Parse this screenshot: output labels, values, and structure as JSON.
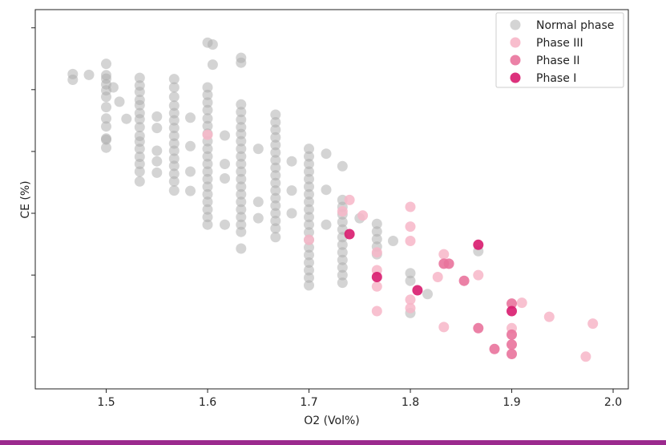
{
  "colors": {
    "normal": "#a9a9a9",
    "phase3": "#f7b6c8",
    "phase2": "#e9739c",
    "phase1": "#d81b6e",
    "bottom_rule": "#9b2a8e"
  },
  "chart_data": {
    "type": "scatter",
    "title": "",
    "xlabel": "O2 (Vol%)",
    "ylabel": "CE (%)",
    "xlim": [
      1.43,
      2.015
    ],
    "ylim": [
      0.0,
      1.0
    ],
    "x_ticks": [
      1.5,
      1.6,
      1.7,
      1.8,
      1.9,
      2.0
    ],
    "x_tick_labels": [
      "1.5",
      "1.6",
      "1.7",
      "1.8",
      "1.9",
      "2.0"
    ],
    "y_ticks": [
      0.137,
      0.3,
      0.463,
      0.626,
      0.789,
      0.952
    ],
    "y_tick_labels_shown": false,
    "grid": false,
    "legend_position": "top-right",
    "series": [
      {
        "name": "Normal phase",
        "color": "#a9a9a9",
        "points": [
          [
            1.467,
            0.83
          ],
          [
            1.467,
            0.815
          ],
          [
            1.483,
            0.828
          ],
          [
            1.5,
            0.857
          ],
          [
            1.5,
            0.827
          ],
          [
            1.5,
            0.818
          ],
          [
            1.5,
            0.803
          ],
          [
            1.5,
            0.787
          ],
          [
            1.5,
            0.77
          ],
          [
            1.5,
            0.743
          ],
          [
            1.5,
            0.713
          ],
          [
            1.5,
            0.692
          ],
          [
            1.5,
            0.66
          ],
          [
            1.5,
            0.657
          ],
          [
            1.5,
            0.636
          ],
          [
            1.507,
            0.795
          ],
          [
            1.513,
            0.757
          ],
          [
            1.52,
            0.712
          ],
          [
            1.533,
            0.82
          ],
          [
            1.533,
            0.8
          ],
          [
            1.533,
            0.783
          ],
          [
            1.533,
            0.762
          ],
          [
            1.533,
            0.748
          ],
          [
            1.533,
            0.727
          ],
          [
            1.533,
            0.711
          ],
          [
            1.533,
            0.69
          ],
          [
            1.533,
            0.667
          ],
          [
            1.533,
            0.652
          ],
          [
            1.533,
            0.633
          ],
          [
            1.533,
            0.612
          ],
          [
            1.533,
            0.593
          ],
          [
            1.533,
            0.573
          ],
          [
            1.533,
            0.547
          ],
          [
            1.55,
            0.718
          ],
          [
            1.55,
            0.688
          ],
          [
            1.55,
            0.628
          ],
          [
            1.55,
            0.6
          ],
          [
            1.55,
            0.57
          ],
          [
            1.567,
            0.817
          ],
          [
            1.567,
            0.795
          ],
          [
            1.567,
            0.77
          ],
          [
            1.567,
            0.747
          ],
          [
            1.567,
            0.727
          ],
          [
            1.567,
            0.708
          ],
          [
            1.567,
            0.688
          ],
          [
            1.567,
            0.667
          ],
          [
            1.567,
            0.647
          ],
          [
            1.567,
            0.628
          ],
          [
            1.567,
            0.607
          ],
          [
            1.567,
            0.588
          ],
          [
            1.567,
            0.567
          ],
          [
            1.567,
            0.547
          ],
          [
            1.567,
            0.523
          ],
          [
            1.583,
            0.715
          ],
          [
            1.583,
            0.573
          ],
          [
            1.583,
            0.522
          ],
          [
            1.6,
            0.913
          ],
          [
            1.6,
            0.795
          ],
          [
            1.6,
            0.775
          ],
          [
            1.6,
            0.755
          ],
          [
            1.6,
            0.735
          ],
          [
            1.6,
            0.713
          ],
          [
            1.6,
            0.693
          ],
          [
            1.6,
            0.673
          ],
          [
            1.6,
            0.653
          ],
          [
            1.6,
            0.633
          ],
          [
            1.6,
            0.613
          ],
          [
            1.6,
            0.593
          ],
          [
            1.6,
            0.573
          ],
          [
            1.6,
            0.553
          ],
          [
            1.6,
            0.533
          ],
          [
            1.6,
            0.513
          ],
          [
            1.6,
            0.493
          ],
          [
            1.6,
            0.473
          ],
          [
            1.6,
            0.453
          ],
          [
            1.6,
            0.433
          ],
          [
            1.605,
            0.908
          ],
          [
            1.605,
            0.855
          ],
          [
            1.617,
            0.668
          ],
          [
            1.617,
            0.593
          ],
          [
            1.617,
            0.433
          ],
          [
            1.633,
            0.873
          ],
          [
            1.633,
            0.86
          ],
          [
            1.633,
            0.75
          ],
          [
            1.633,
            0.73
          ],
          [
            1.633,
            0.71
          ],
          [
            1.633,
            0.69
          ],
          [
            1.633,
            0.672
          ],
          [
            1.633,
            0.653
          ],
          [
            1.633,
            0.633
          ],
          [
            1.633,
            0.613
          ],
          [
            1.633,
            0.593
          ],
          [
            1.633,
            0.573
          ],
          [
            1.633,
            0.553
          ],
          [
            1.633,
            0.533
          ],
          [
            1.633,
            0.513
          ],
          [
            1.633,
            0.493
          ],
          [
            1.633,
            0.473
          ],
          [
            1.633,
            0.453
          ],
          [
            1.633,
            0.433
          ],
          [
            1.633,
            0.414
          ],
          [
            1.633,
            0.37
          ],
          [
            1.65,
            0.633
          ],
          [
            1.65,
            0.493
          ],
          [
            1.65,
            0.45
          ],
          [
            1.667,
            0.723
          ],
          [
            1.667,
            0.703
          ],
          [
            1.667,
            0.683
          ],
          [
            1.667,
            0.663
          ],
          [
            1.667,
            0.643
          ],
          [
            1.667,
            0.623
          ],
          [
            1.667,
            0.603
          ],
          [
            1.667,
            0.583
          ],
          [
            1.667,
            0.563
          ],
          [
            1.667,
            0.543
          ],
          [
            1.667,
            0.523
          ],
          [
            1.667,
            0.503
          ],
          [
            1.667,
            0.483
          ],
          [
            1.667,
            0.463
          ],
          [
            1.667,
            0.443
          ],
          [
            1.667,
            0.423
          ],
          [
            1.667,
            0.4
          ],
          [
            1.683,
            0.6
          ],
          [
            1.683,
            0.523
          ],
          [
            1.683,
            0.463
          ],
          [
            1.7,
            0.633
          ],
          [
            1.7,
            0.613
          ],
          [
            1.7,
            0.593
          ],
          [
            1.7,
            0.573
          ],
          [
            1.7,
            0.553
          ],
          [
            1.7,
            0.533
          ],
          [
            1.7,
            0.513
          ],
          [
            1.7,
            0.493
          ],
          [
            1.7,
            0.473
          ],
          [
            1.7,
            0.453
          ],
          [
            1.7,
            0.433
          ],
          [
            1.7,
            0.413
          ],
          [
            1.7,
            0.393
          ],
          [
            1.7,
            0.373
          ],
          [
            1.7,
            0.353
          ],
          [
            1.7,
            0.333
          ],
          [
            1.7,
            0.313
          ],
          [
            1.7,
            0.293
          ],
          [
            1.7,
            0.273
          ],
          [
            1.717,
            0.525
          ],
          [
            1.717,
            0.433
          ],
          [
            1.733,
            0.498
          ],
          [
            1.733,
            0.48
          ],
          [
            1.733,
            0.46
          ],
          [
            1.733,
            0.44
          ],
          [
            1.733,
            0.42
          ],
          [
            1.733,
            0.4
          ],
          [
            1.733,
            0.38
          ],
          [
            1.733,
            0.36
          ],
          [
            1.733,
            0.34
          ],
          [
            1.733,
            0.32
          ],
          [
            1.733,
            0.3
          ],
          [
            1.733,
            0.28
          ],
          [
            1.75,
            0.45
          ],
          [
            1.767,
            0.435
          ],
          [
            1.767,
            0.415
          ],
          [
            1.767,
            0.395
          ],
          [
            1.767,
            0.375
          ],
          [
            1.767,
            0.355
          ],
          [
            1.783,
            0.39
          ],
          [
            1.8,
            0.305
          ],
          [
            1.8,
            0.285
          ],
          [
            1.8,
            0.2
          ],
          [
            1.817,
            0.25
          ],
          [
            1.867,
            0.363
          ],
          [
            1.733,
            0.587
          ],
          [
            1.717,
            0.62
          ],
          [
            1.583,
            0.64
          ],
          [
            1.617,
            0.555
          ]
        ]
      },
      {
        "name": "Phase III",
        "color": "#f7b6c8",
        "points": [
          [
            1.6,
            0.67
          ],
          [
            1.74,
            0.498
          ],
          [
            1.753,
            0.457
          ],
          [
            1.8,
            0.48
          ],
          [
            1.8,
            0.428
          ],
          [
            1.8,
            0.39
          ],
          [
            1.767,
            0.36
          ],
          [
            1.7,
            0.393
          ],
          [
            1.767,
            0.313
          ],
          [
            1.767,
            0.27
          ],
          [
            1.767,
            0.205
          ],
          [
            1.8,
            0.235
          ],
          [
            1.8,
            0.213
          ],
          [
            1.827,
            0.295
          ],
          [
            1.833,
            0.355
          ],
          [
            1.833,
            0.163
          ],
          [
            1.867,
            0.3
          ],
          [
            1.9,
            0.16
          ],
          [
            1.91,
            0.227
          ],
          [
            1.937,
            0.19
          ],
          [
            1.973,
            0.085
          ],
          [
            1.98,
            0.172
          ],
          [
            1.733,
            0.468
          ]
        ]
      },
      {
        "name": "Phase II",
        "color": "#e9739c",
        "points": [
          [
            1.833,
            0.33
          ],
          [
            1.838,
            0.33
          ],
          [
            1.853,
            0.285
          ],
          [
            1.867,
            0.16
          ],
          [
            1.883,
            0.105
          ],
          [
            1.9,
            0.143
          ],
          [
            1.9,
            0.117
          ],
          [
            1.9,
            0.092
          ],
          [
            1.9,
            0.225
          ]
        ]
      },
      {
        "name": "Phase I",
        "color": "#d81b6e",
        "points": [
          [
            1.74,
            0.408
          ],
          [
            1.767,
            0.295
          ],
          [
            1.807,
            0.26
          ],
          [
            1.867,
            0.38
          ],
          [
            1.9,
            0.205
          ]
        ]
      }
    ]
  }
}
